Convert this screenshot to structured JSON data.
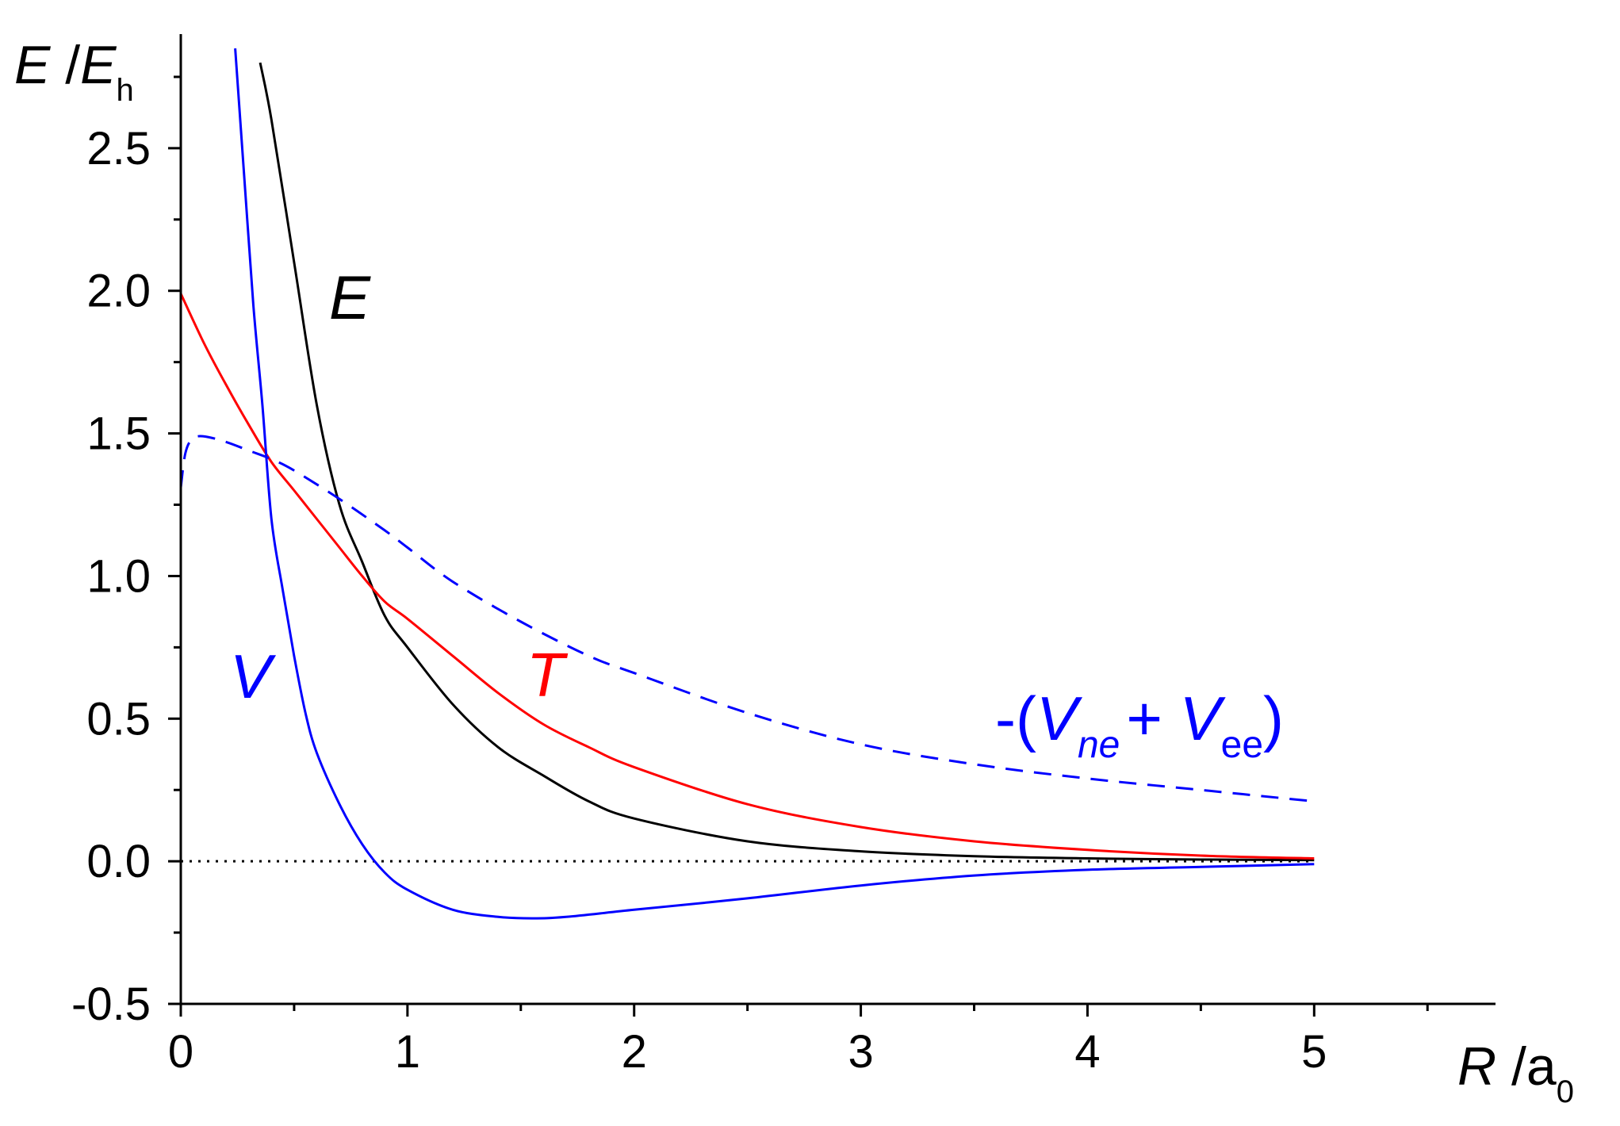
{
  "chart_data": {
    "type": "line",
    "xlabel": {
      "symbol": "R",
      "sep": " /",
      "unit": "a",
      "unit_sub": "0"
    },
    "ylabel": {
      "symbol": "E",
      "sep": " /",
      "unit": "E",
      "unit_sub": "h"
    },
    "xlim": [
      0,
      5.8
    ],
    "ylim": [
      -0.5,
      2.9
    ],
    "xticks": [
      0,
      1,
      2,
      3,
      4,
      5
    ],
    "xtick_labels": [
      "0",
      "1",
      "2",
      "3",
      "4",
      "5"
    ],
    "yticks": [
      -0.5,
      0.0,
      0.5,
      1.0,
      1.5,
      2.0,
      2.5
    ],
    "ytick_labels": [
      "-0.5",
      "0.0",
      "0.5",
      "1.0",
      "1.5",
      "2.0",
      "2.5"
    ],
    "grid": false,
    "reference_line": {
      "y": 0,
      "style": "dotted",
      "color": "#000000"
    },
    "series": [
      {
        "name": "E",
        "color": "#000000",
        "dash": "solid",
        "x": [
          0.35,
          0.4,
          0.5,
          0.6,
          0.7,
          0.8,
          0.9,
          1.0,
          1.2,
          1.4,
          1.6,
          1.8,
          2.0,
          2.5,
          3.0,
          3.5,
          4.0,
          4.5,
          5.0
        ],
        "y": [
          2.8,
          2.6,
          2.1,
          1.6,
          1.25,
          1.05,
          0.86,
          0.75,
          0.55,
          0.4,
          0.3,
          0.21,
          0.15,
          0.07,
          0.035,
          0.018,
          0.01,
          0.006,
          0.004
        ]
      },
      {
        "name": "T",
        "color": "#ff0000",
        "dash": "solid",
        "x": [
          0.0,
          0.1,
          0.2,
          0.3,
          0.4,
          0.5,
          0.6,
          0.7,
          0.8,
          0.9,
          1.0,
          1.2,
          1.4,
          1.6,
          1.8,
          2.0,
          2.5,
          3.0,
          3.5,
          4.0,
          4.5,
          5.0
        ],
        "y": [
          1.99,
          1.82,
          1.67,
          1.53,
          1.4,
          1.3,
          1.2,
          1.1,
          1.0,
          0.91,
          0.85,
          0.72,
          0.59,
          0.48,
          0.4,
          0.33,
          0.2,
          0.12,
          0.07,
          0.04,
          0.02,
          0.01
        ]
      },
      {
        "name": "V",
        "color": "#0000ff",
        "dash": "solid",
        "x": [
          0.24,
          0.28,
          0.32,
          0.36,
          0.4,
          0.45,
          0.5,
          0.55,
          0.6,
          0.7,
          0.8,
          0.9,
          1.0,
          1.2,
          1.4,
          1.55,
          1.7,
          2.0,
          2.5,
          3.0,
          3.5,
          4.0,
          4.5,
          5.0
        ],
        "y": [
          2.85,
          2.4,
          1.95,
          1.6,
          1.2,
          0.95,
          0.72,
          0.52,
          0.38,
          0.2,
          0.06,
          -0.04,
          -0.1,
          -0.17,
          -0.195,
          -0.2,
          -0.195,
          -0.17,
          -0.13,
          -0.085,
          -0.05,
          -0.03,
          -0.02,
          -0.01
        ]
      },
      {
        "name": "-(V_ne + V_ee)",
        "color": "#0000ff",
        "dash": "dashed",
        "x": [
          0.0,
          0.02,
          0.05,
          0.1,
          0.2,
          0.3,
          0.4,
          0.5,
          0.7,
          0.9,
          1.0,
          1.2,
          1.5,
          1.8,
          2.0,
          2.5,
          3.0,
          3.5,
          4.0,
          4.5,
          5.0
        ],
        "y": [
          1.31,
          1.43,
          1.48,
          1.49,
          1.47,
          1.44,
          1.41,
          1.37,
          1.27,
          1.16,
          1.1,
          0.98,
          0.84,
          0.72,
          0.66,
          0.52,
          0.41,
          0.34,
          0.29,
          0.25,
          0.21
        ]
      }
    ],
    "labels": {
      "E": "E",
      "T": "T",
      "V": "V",
      "neg_open": "-(",
      "V1": "V",
      "sub1": "ne",
      "plus": "+ ",
      "V2": "V",
      "sub2": "ee",
      "close": ")"
    }
  }
}
